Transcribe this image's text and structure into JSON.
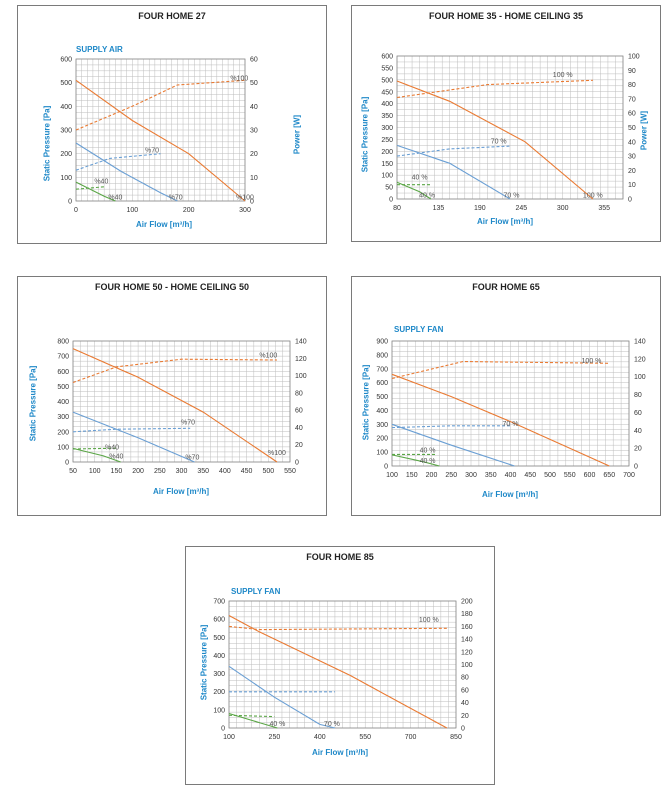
{
  "colors": {
    "accent": "#1e88c8",
    "orange": "#ea7a32",
    "blue": "#6a9fd4",
    "green": "#5aa646",
    "grid": "#bdbdbd"
  },
  "chart_data": [
    {
      "type": "line",
      "title": "FOUR HOME 27",
      "subtitle": "SUPPLY AIR",
      "xlabel": "Air Flow [m³/h]",
      "ylabel": "Static Pressure [Pa]",
      "y2label": "Power [W]",
      "xlim": [
        0,
        300
      ],
      "xticks": [
        0,
        100,
        200,
        300
      ],
      "ylim": [
        0,
        600
      ],
      "yticks": [
        0,
        100,
        200,
        300,
        400,
        500,
        600
      ],
      "y2lim": [
        0,
        60
      ],
      "y2ticks": [
        0,
        10,
        20,
        30,
        40,
        50,
        60
      ],
      "series": [
        {
          "name": "%100",
          "kind": "pressure",
          "color": "orange",
          "points": [
            [
              0,
              510
            ],
            [
              100,
              340
            ],
            [
              200,
              200
            ],
            [
              300,
              0
            ]
          ]
        },
        {
          "name": "%70",
          "kind": "pressure",
          "color": "blue",
          "points": [
            [
              0,
              245
            ],
            [
              80,
              125
            ],
            [
              150,
              35
            ],
            [
              180,
              0
            ]
          ]
        },
        {
          "name": "%40",
          "kind": "pressure",
          "color": "green",
          "points": [
            [
              0,
              80
            ],
            [
              50,
              20
            ],
            [
              70,
              0
            ]
          ]
        },
        {
          "name": "%100",
          "kind": "power",
          "color": "orange",
          "points": [
            [
              0,
              30
            ],
            [
              100,
              40
            ],
            [
              180,
              49
            ],
            [
              300,
              51
            ]
          ]
        },
        {
          "name": "%70",
          "kind": "power",
          "color": "blue",
          "points": [
            [
              0,
              13
            ],
            [
              60,
              18
            ],
            [
              150,
              20
            ]
          ]
        },
        {
          "name": "%40",
          "kind": "power",
          "color": "green",
          "points": [
            [
              0,
              5
            ],
            [
              50,
              6
            ]
          ]
        }
      ],
      "annotations": [
        {
          "text": "%100",
          "x": 290,
          "y": 505
        },
        {
          "text": "%70",
          "x": 135,
          "y": 200
        },
        {
          "text": "%40",
          "x": 45,
          "y": 70
        },
        {
          "text": "%100",
          "x": 300,
          "y": 2
        },
        {
          "text": "%70",
          "x": 177,
          "y": 2
        },
        {
          "text": "%40",
          "x": 70,
          "y": 2
        }
      ]
    },
    {
      "type": "line",
      "title": "FOUR HOME 35 - HOME CEILING 35",
      "subtitle": "",
      "xlabel": "Air Flow [m³/h]",
      "ylabel": "Static Pressure [Pa]",
      "y2label": "Power [W]",
      "xlim": [
        80,
        380
      ],
      "xticks": [
        80,
        135,
        190,
        245,
        300,
        355
      ],
      "ylim": [
        0,
        600
      ],
      "yticks": [
        0,
        50,
        100,
        150,
        200,
        250,
        300,
        350,
        400,
        450,
        500,
        550,
        600
      ],
      "y2lim": [
        0,
        100
      ],
      "y2ticks": [
        0,
        10,
        20,
        30,
        40,
        50,
        60,
        70,
        80,
        90,
        100
      ],
      "series": [
        {
          "name": "100 %",
          "kind": "pressure",
          "color": "orange",
          "points": [
            [
              80,
              495
            ],
            [
              150,
              410
            ],
            [
              250,
              240
            ],
            [
              340,
              0
            ]
          ]
        },
        {
          "name": "70 %",
          "kind": "pressure",
          "color": "blue",
          "points": [
            [
              80,
              225
            ],
            [
              150,
              150
            ],
            [
              230,
              0
            ]
          ]
        },
        {
          "name": "40 %",
          "kind": "pressure",
          "color": "green",
          "points": [
            [
              80,
              70
            ],
            [
              110,
              30
            ],
            [
              125,
              0
            ]
          ]
        },
        {
          "name": "100 %",
          "kind": "power",
          "color": "orange",
          "points": [
            [
              80,
              71
            ],
            [
              200,
              80
            ],
            [
              340,
              83
            ]
          ]
        },
        {
          "name": "70 %",
          "kind": "power",
          "color": "blue",
          "points": [
            [
              80,
              30
            ],
            [
              150,
              35
            ],
            [
              230,
              37
            ]
          ]
        },
        {
          "name": "40 %",
          "kind": "power",
          "color": "green",
          "points": [
            [
              80,
              10
            ],
            [
              125,
              10
            ]
          ]
        }
      ],
      "annotations": [
        {
          "text": "100 %",
          "x": 300,
          "y": 508
        },
        {
          "text": "70 %",
          "x": 215,
          "y": 228
        },
        {
          "text": "40 %",
          "x": 110,
          "y": 78
        },
        {
          "text": "100 %",
          "x": 340,
          "y": 2
        },
        {
          "text": "70 %",
          "x": 232,
          "y": 2
        },
        {
          "text": "40 %",
          "x": 120,
          "y": 2
        }
      ]
    },
    {
      "type": "line",
      "title": "FOUR HOME 50 - HOME CEILING 50",
      "subtitle": "",
      "xlabel": "Air Flow [m³/h]",
      "ylabel": "Static Pressure [Pa]",
      "y2label": "",
      "xlim": [
        50,
        550
      ],
      "xticks": [
        50,
        100,
        150,
        200,
        250,
        300,
        350,
        400,
        450,
        500,
        550
      ],
      "ylim": [
        0,
        800
      ],
      "yticks": [
        0,
        100,
        200,
        300,
        400,
        500,
        600,
        700,
        800
      ],
      "y2lim": [
        0,
        140
      ],
      "y2ticks": [
        0,
        20,
        40,
        60,
        80,
        100,
        120,
        140
      ],
      "series": [
        {
          "name": "%100",
          "kind": "pressure",
          "color": "orange",
          "points": [
            [
              50,
              750
            ],
            [
              200,
              560
            ],
            [
              350,
              330
            ],
            [
              520,
              0
            ]
          ]
        },
        {
          "name": "%70",
          "kind": "pressure",
          "color": "blue",
          "points": [
            [
              50,
              330
            ],
            [
              200,
              160
            ],
            [
              330,
              0
            ]
          ]
        },
        {
          "name": "%40",
          "kind": "pressure",
          "color": "green",
          "points": [
            [
              50,
              90
            ],
            [
              120,
              40
            ],
            [
              160,
              0
            ]
          ]
        },
        {
          "name": "%100",
          "kind": "power",
          "color": "orange",
          "points": [
            [
              50,
              92
            ],
            [
              150,
              110
            ],
            [
              300,
              119
            ],
            [
              520,
              118
            ]
          ]
        },
        {
          "name": "%70",
          "kind": "power",
          "color": "blue",
          "points": [
            [
              50,
              35
            ],
            [
              150,
              38
            ],
            [
              320,
              39
            ]
          ]
        },
        {
          "name": "%40",
          "kind": "power",
          "color": "green",
          "points": [
            [
              50,
              15
            ],
            [
              150,
              16
            ]
          ]
        }
      ],
      "annotations": [
        {
          "text": "%100",
          "x": 500,
          "y": 685
        },
        {
          "text": "%70",
          "x": 315,
          "y": 240
        },
        {
          "text": "%40",
          "x": 140,
          "y": 75
        },
        {
          "text": "%100",
          "x": 520,
          "y": 40
        },
        {
          "text": "%70",
          "x": 325,
          "y": 10
        },
        {
          "text": "%40",
          "x": 150,
          "y": 15
        }
      ]
    },
    {
      "type": "line",
      "title": "FOUR HOME 65",
      "subtitle": "SUPPLY FAN",
      "xlabel": "Air Flow [m³/h]",
      "ylabel": "Static Pressure [Pa]",
      "y2label": "",
      "xlim": [
        100,
        700
      ],
      "xticks": [
        100,
        150,
        200,
        250,
        300,
        350,
        400,
        450,
        500,
        550,
        600,
        650,
        700
      ],
      "ylim": [
        0,
        900
      ],
      "yticks": [
        0,
        100,
        200,
        300,
        400,
        500,
        600,
        700,
        800,
        900
      ],
      "y2lim": [
        0,
        140
      ],
      "y2ticks": [
        0,
        20,
        40,
        60,
        80,
        100,
        120,
        140
      ],
      "series": [
        {
          "name": "100 %",
          "kind": "pressure",
          "color": "orange",
          "points": [
            [
              100,
              660
            ],
            [
              250,
              500
            ],
            [
              400,
              320
            ],
            [
              650,
              0
            ]
          ]
        },
        {
          "name": "70 %",
          "kind": "pressure",
          "color": "blue",
          "points": [
            [
              100,
              300
            ],
            [
              250,
              150
            ],
            [
              410,
              0
            ]
          ]
        },
        {
          "name": "40 %",
          "kind": "pressure",
          "color": "green",
          "points": [
            [
              100,
              80
            ],
            [
              180,
              30
            ],
            [
              220,
              0
            ]
          ]
        },
        {
          "name": "100 %",
          "kind": "power",
          "color": "orange",
          "points": [
            [
              100,
              98
            ],
            [
              280,
              117
            ],
            [
              650,
              115
            ]
          ]
        },
        {
          "name": "70 %",
          "kind": "power",
          "color": "blue",
          "points": [
            [
              100,
              43
            ],
            [
              250,
              45
            ],
            [
              400,
              45
            ]
          ]
        },
        {
          "name": "40 %",
          "kind": "power",
          "color": "green",
          "points": [
            [
              100,
              13
            ],
            [
              210,
              13
            ]
          ]
        }
      ],
      "annotations": [
        {
          "text": "100 %",
          "x": 605,
          "y": 735
        },
        {
          "text": "70 %",
          "x": 400,
          "y": 280
        },
        {
          "text": "40 %",
          "x": 190,
          "y": 90
        },
        {
          "text": "40 %",
          "x": 190,
          "y": 15
        }
      ]
    },
    {
      "type": "line",
      "title": "FOUR HOME 85",
      "subtitle": "SUPPLY FAN",
      "xlabel": "Air Flow [m³/h]",
      "ylabel": "Static Pressure [Pa]",
      "y2label": "",
      "xlim": [
        100,
        850
      ],
      "xticks": [
        100,
        250,
        400,
        550,
        700,
        850
      ],
      "ylim": [
        0,
        700
      ],
      "yticks": [
        0,
        100,
        200,
        300,
        400,
        500,
        600,
        700
      ],
      "y2lim": [
        0,
        200
      ],
      "y2ticks": [
        0,
        20,
        40,
        60,
        80,
        100,
        120,
        140,
        160,
        180,
        200
      ],
      "series": [
        {
          "name": "100 %",
          "kind": "pressure",
          "color": "orange",
          "points": [
            [
              100,
              620
            ],
            [
              200,
              530
            ],
            [
              500,
              290
            ],
            [
              820,
              0
            ]
          ]
        },
        {
          "name": "70 %",
          "kind": "pressure",
          "color": "blue",
          "points": [
            [
              100,
              340
            ],
            [
              250,
              170
            ],
            [
              400,
              20
            ],
            [
              450,
              0
            ]
          ]
        },
        {
          "name": "40 %",
          "kind": "pressure",
          "color": "green",
          "points": [
            [
              100,
              80
            ],
            [
              200,
              30
            ],
            [
              260,
              0
            ]
          ]
        },
        {
          "name": "100 %",
          "kind": "power",
          "color": "orange",
          "points": [
            [
              100,
              160
            ],
            [
              200,
              155
            ],
            [
              820,
              157
            ]
          ]
        },
        {
          "name": "70 %",
          "kind": "power",
          "color": "blue",
          "points": [
            [
              100,
              57
            ],
            [
              250,
              57
            ],
            [
              450,
              57
            ]
          ]
        },
        {
          "name": "40 %",
          "kind": "power",
          "color": "green",
          "points": [
            [
              100,
              20
            ],
            [
              250,
              18
            ]
          ]
        }
      ],
      "annotations": [
        {
          "text": "100 %",
          "x": 760,
          "y": 578
        },
        {
          "text": "70 %",
          "x": 440,
          "y": 5
        },
        {
          "text": "40 %",
          "x": 260,
          "y": 5
        }
      ]
    }
  ]
}
